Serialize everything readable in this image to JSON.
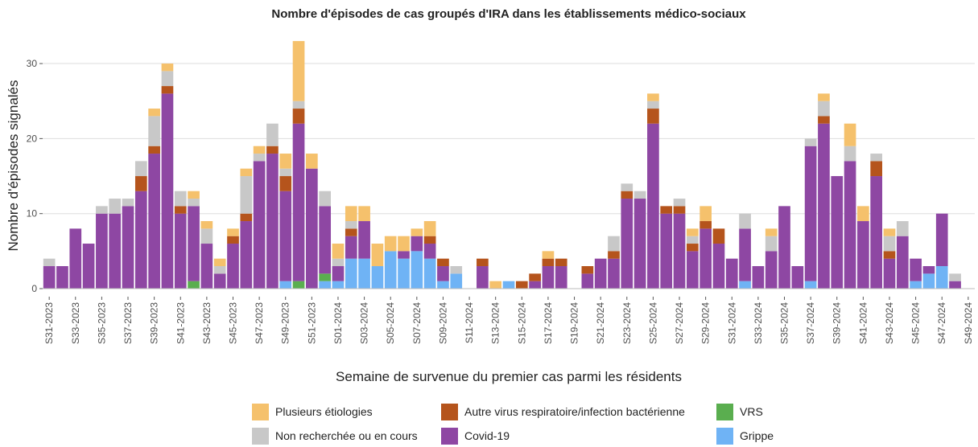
{
  "chart_data": {
    "type": "stacked_bar",
    "title": "Nombre d'épisodes de cas groupés d'IRA dans les établissements médico-sociaux",
    "x_label": "Semaine de survenue du premier cas parmi les résidents",
    "y_label": "Nombre d'épisodes signalés",
    "categories": [
      "S31-2023",
      null,
      "S33-2023",
      null,
      "S35-2023",
      null,
      "S37-2023",
      null,
      "S39-2023",
      null,
      "S41-2023",
      null,
      "S43-2023",
      null,
      "S45-2023",
      null,
      "S47-2023",
      null,
      "S49-2023",
      null,
      "S51-2023",
      null,
      "S01-2024",
      null,
      "S03-2024",
      null,
      "S05-2024",
      null,
      "S07-2024",
      null,
      "S09-2024",
      null,
      "S11-2024",
      null,
      "S13-2024",
      null,
      "S15-2024",
      null,
      "S17-2024",
      null,
      "S19-2024",
      null,
      "S21-2024",
      null,
      "S23-2024",
      null,
      "S25-2024",
      null,
      "S27-2024",
      null,
      "S29-2024",
      null,
      "S31-2024",
      null,
      "S33-2024",
      null,
      "S35-2024",
      null,
      "S37-2024",
      null,
      "S39-2024",
      null,
      "S41-2024",
      null,
      "S43-2024",
      null,
      "S45-2024",
      null,
      "S47-2024",
      null,
      "S49-2024"
    ],
    "series": [
      {
        "name": "Plusieurs étiologies",
        "color": "#f5c16c",
        "values": [
          0,
          0,
          0,
          0,
          0,
          0,
          0,
          0,
          1,
          1,
          0,
          1,
          1,
          1,
          1,
          1,
          1,
          0,
          2,
          8,
          2,
          0,
          2,
          2,
          2,
          3,
          2,
          2,
          1,
          2,
          0,
          0,
          0,
          0,
          1,
          0,
          0,
          0,
          1,
          0,
          0,
          0,
          0,
          0,
          0,
          0,
          1,
          0,
          0,
          1,
          2,
          0,
          0,
          0,
          0,
          1,
          0,
          0,
          0,
          1,
          0,
          3,
          2,
          0,
          1,
          0,
          0,
          0,
          0,
          0,
          0
        ]
      },
      {
        "name": "Non recherchée ou en cours",
        "color": "#c8c8c8",
        "values": [
          1,
          0,
          0,
          0,
          1,
          2,
          1,
          2,
          4,
          2,
          2,
          1,
          2,
          1,
          0,
          5,
          1,
          3,
          1,
          1,
          0,
          2,
          1,
          1,
          0,
          0,
          0,
          0,
          0,
          0,
          0,
          1,
          0,
          0,
          0,
          0,
          0,
          0,
          0,
          0,
          0,
          0,
          0,
          2,
          1,
          1,
          1,
          0,
          1,
          1,
          0,
          0,
          0,
          2,
          0,
          2,
          0,
          0,
          1,
          2,
          0,
          2,
          0,
          1,
          2,
          2,
          0,
          0,
          0,
          1,
          0
        ]
      },
      {
        "name": "Autre virus respiratoire/infection bactérienne",
        "color": "#b5541c",
        "values": [
          0,
          0,
          0,
          0,
          0,
          0,
          0,
          2,
          1,
          1,
          1,
          0,
          0,
          0,
          1,
          1,
          0,
          1,
          2,
          2,
          0,
          0,
          0,
          1,
          0,
          0,
          0,
          0,
          0,
          1,
          1,
          0,
          0,
          1,
          0,
          0,
          1,
          1,
          1,
          1,
          0,
          1,
          0,
          1,
          1,
          0,
          2,
          1,
          1,
          1,
          1,
          2,
          0,
          0,
          0,
          0,
          0,
          0,
          0,
          1,
          0,
          0,
          0,
          2,
          1,
          0,
          0,
          0,
          0,
          0,
          0
        ]
      },
      {
        "name": "Covid-19",
        "color": "#8e47a3",
        "values": [
          3,
          3,
          8,
          6,
          10,
          10,
          11,
          13,
          18,
          26,
          10,
          10,
          6,
          2,
          6,
          9,
          17,
          18,
          12,
          21,
          16,
          9,
          2,
          3,
          5,
          0,
          0,
          1,
          2,
          2,
          2,
          0,
          0,
          3,
          0,
          0,
          0,
          1,
          3,
          3,
          0,
          2,
          4,
          4,
          12,
          12,
          22,
          10,
          10,
          5,
          8,
          6,
          4,
          7,
          3,
          5,
          11,
          3,
          18,
          22,
          15,
          17,
          9,
          15,
          4,
          7,
          3,
          1,
          7,
          1,
          0
        ]
      },
      {
        "name": "VRS",
        "color": "#5aae4f",
        "values": [
          0,
          0,
          0,
          0,
          0,
          0,
          0,
          0,
          0,
          0,
          0,
          1,
          0,
          0,
          0,
          0,
          0,
          0,
          0,
          1,
          0,
          1,
          0,
          0,
          0,
          0,
          0,
          0,
          0,
          0,
          0,
          0,
          0,
          0,
          0,
          0,
          0,
          0,
          0,
          0,
          0,
          0,
          0,
          0,
          0,
          0,
          0,
          0,
          0,
          0,
          0,
          0,
          0,
          0,
          0,
          0,
          0,
          0,
          0,
          0,
          0,
          0,
          0,
          0,
          0,
          0,
          0,
          0,
          0,
          0,
          0
        ]
      },
      {
        "name": "Grippe",
        "color": "#6fb3f5",
        "values": [
          0,
          0,
          0,
          0,
          0,
          0,
          0,
          0,
          0,
          0,
          0,
          0,
          0,
          0,
          0,
          0,
          0,
          0,
          1,
          0,
          0,
          1,
          1,
          4,
          4,
          3,
          5,
          4,
          5,
          4,
          1,
          2,
          0,
          0,
          0,
          1,
          0,
          0,
          0,
          0,
          0,
          0,
          0,
          0,
          0,
          0,
          0,
          0,
          0,
          0,
          0,
          0,
          0,
          1,
          0,
          0,
          0,
          0,
          1,
          0,
          0,
          0,
          0,
          0,
          0,
          0,
          1,
          2,
          3,
          0,
          0
        ]
      }
    ],
    "ylim": [
      -1.07,
      33.65
    ],
    "yticks": [
      0,
      10,
      20,
      30
    ],
    "grid": true
  }
}
